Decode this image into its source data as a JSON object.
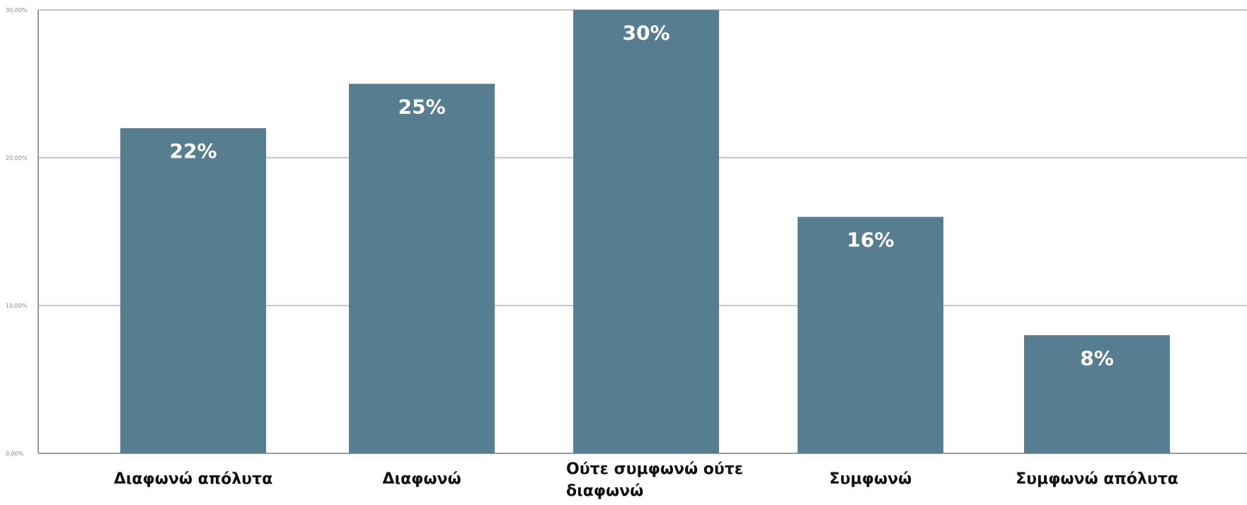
{
  "chart_data": {
    "type": "bar",
    "categories": [
      [
        "Διαφωνώ απόλυτα"
      ],
      [
        "Διαφωνώ"
      ],
      [
        "Ούτε συμφωνώ ούτε",
        "διαφωνώ"
      ],
      [
        "Συμφωνώ"
      ],
      [
        "Συμφωνώ απόλυτα"
      ]
    ],
    "values": [
      22,
      25,
      30,
      16,
      8
    ],
    "data_labels": [
      "22%",
      "25%",
      "30%",
      "16%",
      "8%"
    ],
    "yticks": [
      0,
      10,
      20,
      30
    ],
    "ytick_labels": [
      "0,00%",
      "10,00%",
      "20,00%",
      "30,00%"
    ],
    "ylim": [
      0,
      30
    ],
    "grid": true,
    "legend": "none",
    "title": "",
    "xlabel": "",
    "ylabel": "",
    "colors": {
      "bar": "#567E90",
      "grid": "#c8c8c8",
      "axis": "#9a9a9a"
    }
  }
}
